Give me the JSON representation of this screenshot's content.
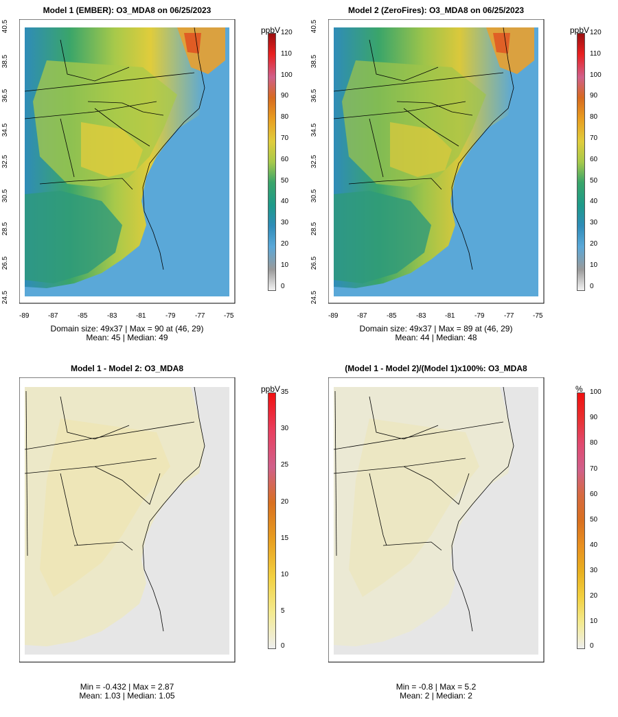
{
  "panels": [
    {
      "title": "Model 1 (EMBER): O3_MDA8 on 06/25/2023",
      "stats_line1": "Domain size: 49x37 | Max = 90 at (46, 29)",
      "stats_line2": "Mean: 45 |  Median: 49",
      "colorbar_unit": "ppbV",
      "colorbar_ticks": [
        "120",
        "110",
        "100",
        "90",
        "80",
        "70",
        "60",
        "50",
        "40",
        "30",
        "20",
        "10",
        "0"
      ],
      "x_ticks": [
        "-89",
        "-87",
        "-85",
        "-83",
        "-81",
        "-79",
        "-77",
        "-75"
      ],
      "y_ticks": [
        "40.5",
        "38.5",
        "36.5",
        "34.5",
        "32.5",
        "30.5",
        "28.5",
        "26.5",
        "24.5"
      ]
    },
    {
      "title": "Model 2 (ZeroFires): O3_MDA8 on 06/25/2023",
      "stats_line1": "Domain size: 49x37 | Max = 89 at (46, 29)",
      "stats_line2": "Mean: 44 |  Median: 48",
      "colorbar_unit": "ppbV",
      "colorbar_ticks": [
        "120",
        "110",
        "100",
        "90",
        "80",
        "70",
        "60",
        "50",
        "40",
        "30",
        "20",
        "10",
        "0"
      ],
      "x_ticks": [
        "-89",
        "-87",
        "-85",
        "-83",
        "-81",
        "-79",
        "-77",
        "-75"
      ],
      "y_ticks": [
        "40.5",
        "38.5",
        "36.5",
        "34.5",
        "32.5",
        "30.5",
        "28.5",
        "26.5",
        "24.5"
      ]
    },
    {
      "title": "Model 1 - Model 2: O3_MDA8",
      "stats_line1": "Min = -0.432 | Max = 2.87",
      "stats_line2": "Mean: 1.03 |  Median: 1.05",
      "colorbar_unit": "ppbV",
      "colorbar_ticks": [
        "35",
        "30",
        "25",
        "20",
        "15",
        "10",
        "5",
        "0"
      ]
    },
    {
      "title": "(Model 1 - Model 2)/(Model 1)x100%: O3_MDA8",
      "stats_line1": "Min = -0.8 | Max = 5.2",
      "stats_line2": "Mean: 2 |  Median: 2",
      "colorbar_unit": "%",
      "colorbar_ticks": [
        "100",
        "90",
        "80",
        "70",
        "60",
        "50",
        "40",
        "30",
        "20",
        "10",
        "0"
      ]
    }
  ],
  "colors": {
    "ocean_abs": "#5aa8d8",
    "land_abs": "#3aa56a",
    "high_abs": "#e8a030",
    "diff_bg": "#e6e6e6",
    "diff_land": "#ece8c8"
  }
}
